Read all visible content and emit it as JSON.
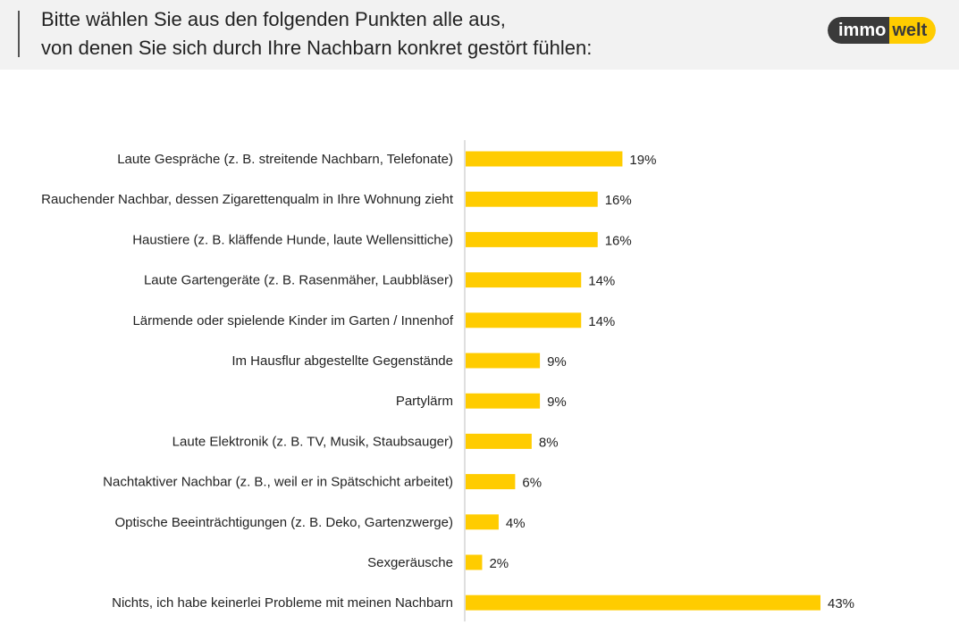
{
  "header": {
    "title_line1": "Bitte wählen Sie aus den folgenden Punkten alle aus,",
    "title_line2": "von denen Sie sich durch Ihre Nachbarn konkret gestört fühlen:"
  },
  "logo": {
    "left_text": "immo",
    "right_text": "welt"
  },
  "colors": {
    "bar": "#ffcc00",
    "axis": "#bfbfbf",
    "header_bg": "#f2f2f2"
  },
  "chart_data": {
    "type": "bar",
    "orientation": "horizontal",
    "unit": "%",
    "categories": [
      "Laute Gespräche (z. B. streitende Nachbarn, Telefonate)",
      "Rauchender Nachbar, dessen Zigarettenqualm in Ihre Wohnung zieht",
      "Haustiere (z. B. kläffende Hunde, laute Wellensittiche)",
      "Laute Gartengeräte (z. B. Rasenmäher, Laubbläser)",
      "Lärmende oder spielende Kinder im Garten / Innenhof",
      "Im Hausflur abgestellte Gegenstände",
      "Partylärm",
      "Laute Elektronik (z. B. TV, Musik, Staubsauger)",
      "Nachtaktiver Nachbar (z. B., weil er in Spätschicht arbeitet)",
      "Optische Beeinträchtigungen (z. B. Deko, Gartenzwerge)",
      "Sexgeräusche",
      "Nichts, ich habe keinerlei Probleme mit meinen Nachbarn"
    ],
    "values": [
      19,
      16,
      16,
      14,
      14,
      9,
      9,
      8,
      6,
      4,
      2,
      43
    ],
    "value_labels": [
      "19%",
      "16%",
      "16%",
      "14%",
      "14%",
      "9%",
      "9%",
      "8%",
      "6%",
      "4%",
      "2%",
      "43%"
    ],
    "xlim": [
      0,
      43
    ],
    "grid": false,
    "legend": "none"
  }
}
